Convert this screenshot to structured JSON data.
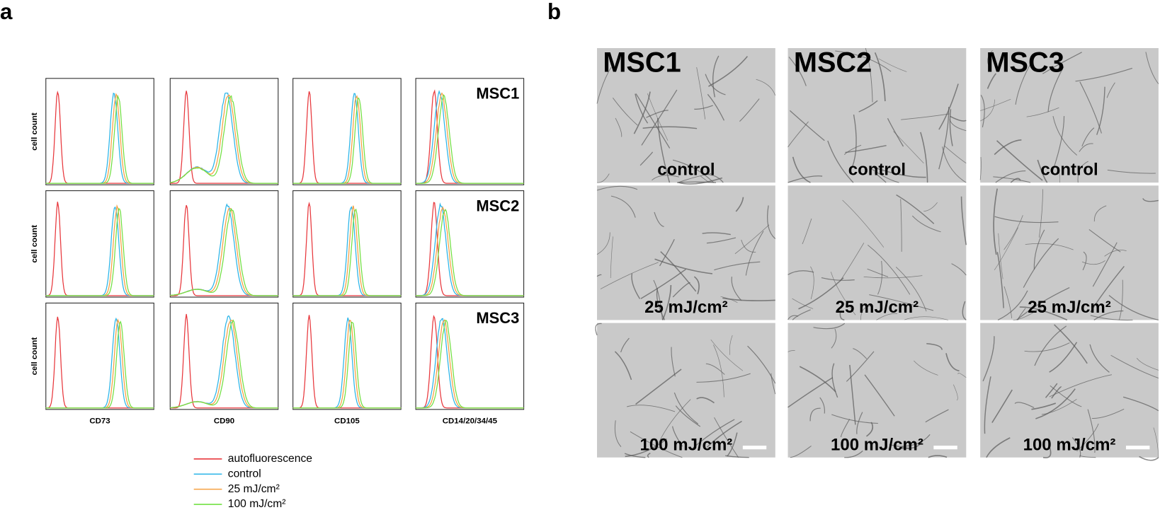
{
  "panel_a": {
    "label": "a",
    "y_label": "cell count",
    "markers": [
      "CD73",
      "CD90",
      "CD105",
      "CD14/20/34/45"
    ],
    "samples": [
      "MSC1",
      "MSC2",
      "MSC3"
    ],
    "legend": [
      {
        "name": "autofluorescence",
        "color": "#e8383d"
      },
      {
        "name": "control",
        "color": "#2cb5e8"
      },
      {
        "name": "25 mJ/cm²",
        "color": "#f5a042"
      },
      {
        "name": "100 mJ/cm²",
        "color": "#72e043"
      }
    ]
  },
  "panel_b": {
    "label": "b",
    "samples": [
      "MSC1",
      "MSC2",
      "MSC3"
    ],
    "conditions": [
      "control",
      "25 mJ/cm²",
      "100 mJ/cm²"
    ]
  }
}
